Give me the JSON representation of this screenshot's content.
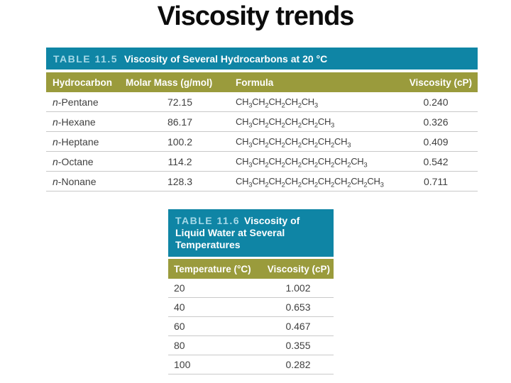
{
  "slide": {
    "title": "Viscosity trends"
  },
  "colors": {
    "table_header_teal": "#0f85a5",
    "column_header_olive": "#9a9b3c",
    "table_label_lightblue": "#a6d9e8",
    "body_text": "#3f3f3f",
    "row_divider": "#c9c9c9"
  },
  "table_hydrocarbons": {
    "label": "TABLE 11.5",
    "title": "Viscosity of Several Hydrocarbons at 20 °C",
    "columns": [
      "Hydrocarbon",
      "Molar Mass (g/mol)",
      "Formula",
      "Viscosity (cP)"
    ],
    "rows": [
      {
        "hydrocarbon": "n-Pentane",
        "molar_mass": "72.15",
        "formula": "CH3CH2CH2CH2CH3",
        "viscosity": "0.240"
      },
      {
        "hydrocarbon": "n-Hexane",
        "molar_mass": "86.17",
        "formula": "CH3CH2CH2CH2CH2CH3",
        "viscosity": "0.326"
      },
      {
        "hydrocarbon": "n-Heptane",
        "molar_mass": "100.2",
        "formula": "CH3CH2CH2CH2CH2CH2CH3",
        "viscosity": "0.409"
      },
      {
        "hydrocarbon": "n-Octane",
        "molar_mass": "114.2",
        "formula": "CH3CH2CH2CH2CH2CH2CH2CH3",
        "viscosity": "0.542"
      },
      {
        "hydrocarbon": "n-Nonane",
        "molar_mass": "128.3",
        "formula": "CH3CH2CH2CH2CH2CH2CH2CH2CH3",
        "viscosity": "0.711"
      }
    ]
  },
  "table_water": {
    "label": "TABLE 11.6",
    "title": "Viscosity of Liquid Water at Several Temperatures",
    "columns": [
      "Temperature (°C)",
      "Viscosity (cP)"
    ],
    "rows": [
      {
        "temperature": "20",
        "viscosity": "1.002"
      },
      {
        "temperature": "40",
        "viscosity": "0.653"
      },
      {
        "temperature": "60",
        "viscosity": "0.467"
      },
      {
        "temperature": "80",
        "viscosity": "0.355"
      },
      {
        "temperature": "100",
        "viscosity": "0.282"
      }
    ]
  }
}
